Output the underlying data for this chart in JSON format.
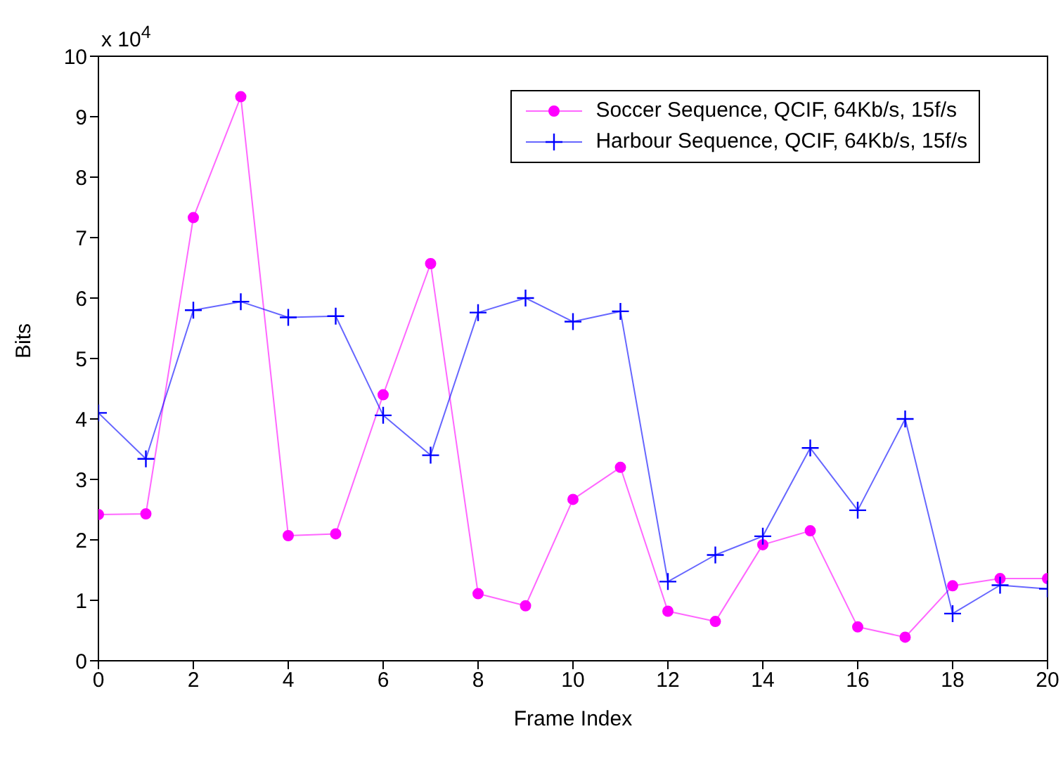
{
  "chart_data": {
    "type": "line",
    "xlabel": "Frame Index",
    "ylabel": "Bits",
    "annotations": [
      "x 10$^{4}$"
    ],
    "x": [
      0,
      1,
      2,
      3,
      4,
      5,
      6,
      7,
      8,
      9,
      10,
      11,
      12,
      13,
      14,
      15,
      16,
      17,
      18,
      19,
      20
    ],
    "series": [
      {
        "name": "Soccer Sequence, QCIF, 64Kb/s, 15f/s",
        "color": "#ff00ff",
        "marker": "circle",
        "values": [
          2.42,
          2.43,
          7.33,
          9.33,
          2.07,
          2.1,
          4.4,
          6.57,
          1.11,
          0.91,
          2.67,
          3.2,
          0.82,
          0.65,
          1.92,
          2.15,
          0.56,
          0.39,
          1.24,
          1.36,
          1.36
        ]
      },
      {
        "name": "Harbour Sequence, QCIF, 64Kb/s, 15f/s",
        "color": "#0000ff",
        "marker": "cross",
        "values": [
          4.1,
          3.34,
          5.8,
          5.94,
          5.68,
          5.7,
          4.06,
          3.4,
          5.76,
          6.0,
          5.61,
          5.78,
          1.31,
          1.75,
          2.06,
          3.52,
          2.49,
          4.0,
          0.78,
          1.25,
          1.19
        ]
      }
    ],
    "xlim": [
      0,
      20
    ],
    "xticks": [
      0,
      2,
      4,
      6,
      8,
      10,
      12,
      14,
      16,
      18,
      20
    ],
    "ylim": [
      0,
      10
    ],
    "yticks": [
      0,
      1,
      2,
      3,
      4,
      5,
      6,
      7,
      8,
      9,
      10
    ],
    "grid": false,
    "legend": "top right",
    "line_style": "solid"
  }
}
